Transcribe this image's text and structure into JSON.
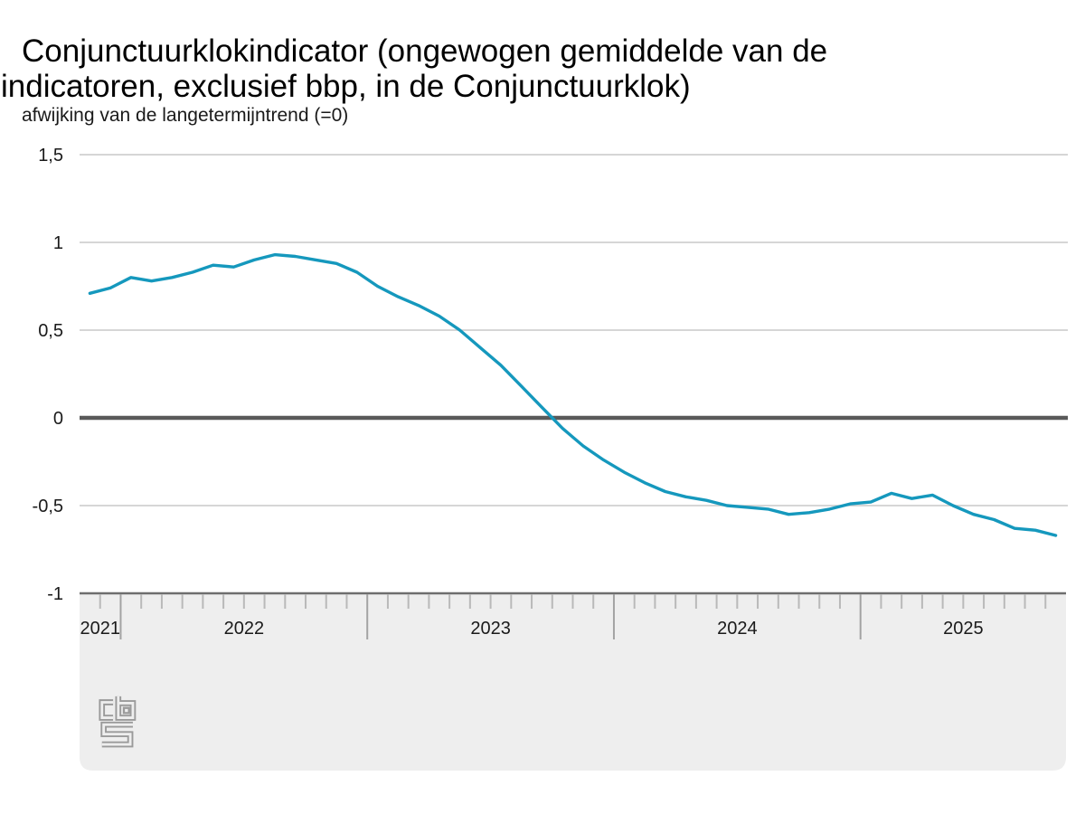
{
  "page": {
    "title_line1": "Conjunctuurklokindicator (ongewogen gemiddelde van de",
    "title_line2": "indicatoren, exclusief bbp, in de Conjunctuurklok)",
    "unit_label": "afwijking van de langetermijntrend (=0)"
  },
  "colors": {
    "line": "#1598bd",
    "zero_line": "#595959",
    "gridline": "#c9c9c9",
    "band_fill": "#eeeeee",
    "axis_border": "#6e6e6e",
    "tick_minor": "#b9b9b9",
    "tick_major": "#a3a3a3",
    "text": "#1a1a1a",
    "logo": "#9a9a9a"
  },
  "chart_data": {
    "type": "line",
    "title": "Conjunctuurklokindicator (ongewogen gemiddelde van de indicatoren, exclusief bbp, in de Conjunctuurklok)",
    "ylabel": "afwijking van de langetermijntrend (=0)",
    "xlabel": "",
    "ylim": [
      -1,
      1.5
    ],
    "grid": true,
    "legend_position": "none",
    "zero_baseline": 0,
    "y_ticks": [
      {
        "value": 1.5,
        "label": "1,5"
      },
      {
        "value": 1,
        "label": "1"
      },
      {
        "value": 0.5,
        "label": "0,5"
      },
      {
        "value": 0,
        "label": "0"
      },
      {
        "value": -0.5,
        "label": "-0,5"
      },
      {
        "value": -1,
        "label": "-1"
      }
    ],
    "x_tick_labels": [
      "2021",
      "2022",
      "2023",
      "2024",
      "2025"
    ],
    "x_range": [
      "2021-11",
      "2025-10"
    ],
    "source_logo": "CBS",
    "series": [
      {
        "name": "Conjunctuurklokindicator (ongewogen gemiddelde, excl. bbp)",
        "color": "#1598bd",
        "months": [
          "2021-11",
          "2021-12",
          "2022-01",
          "2022-02",
          "2022-03",
          "2022-04",
          "2022-05",
          "2022-06",
          "2022-07",
          "2022-08",
          "2022-09",
          "2022-10",
          "2022-11",
          "2022-12",
          "2023-01",
          "2023-02",
          "2023-03",
          "2023-04",
          "2023-05",
          "2023-06",
          "2023-07",
          "2023-08",
          "2023-09",
          "2023-10",
          "2023-11",
          "2023-12",
          "2024-01",
          "2024-02",
          "2024-03",
          "2024-04",
          "2024-05",
          "2024-06",
          "2024-07",
          "2024-08",
          "2024-09",
          "2024-10",
          "2024-11",
          "2024-12",
          "2025-01",
          "2025-02",
          "2025-03",
          "2025-04",
          "2025-05",
          "2025-06",
          "2025-07",
          "2025-08",
          "2025-09",
          "2025-10"
        ],
        "values": [
          0.71,
          0.74,
          0.8,
          0.78,
          0.8,
          0.83,
          0.87,
          0.86,
          0.9,
          0.93,
          0.92,
          0.9,
          0.88,
          0.83,
          0.75,
          0.69,
          0.64,
          0.58,
          0.5,
          0.4,
          0.3,
          0.18,
          0.06,
          -0.06,
          -0.16,
          -0.24,
          -0.31,
          -0.37,
          -0.42,
          -0.45,
          -0.47,
          -0.5,
          -0.51,
          -0.52,
          -0.55,
          -0.54,
          -0.52,
          -0.49,
          -0.48,
          -0.43,
          -0.46,
          -0.44,
          -0.5,
          -0.55,
          -0.58,
          -0.63,
          -0.64,
          -0.67
        ]
      }
    ]
  }
}
